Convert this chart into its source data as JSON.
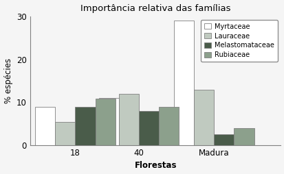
{
  "title": "Importância relativa das famílias",
  "xlabel": "Florestas",
  "ylabel": "% espécies",
  "categories": [
    "18",
    "40",
    "Madura"
  ],
  "series": {
    "Myrtaceae": [
      9.0,
      11.0,
      29.0
    ],
    "Lauraceae": [
      5.5,
      12.0,
      13.0
    ],
    "Melastomataceae": [
      9.0,
      8.0,
      2.5
    ],
    "Rubiaceae": [
      10.8,
      9.0,
      4.0
    ]
  },
  "colors": {
    "Myrtaceae": "#ffffff",
    "Lauraceae": "#c0cac0",
    "Melastomataceae": "#4a5c4a",
    "Rubiaceae": "#8ca08c"
  },
  "edge_color": "#808080",
  "ylim": [
    0,
    30
  ],
  "yticks": [
    0,
    10,
    20,
    30
  ],
  "bar_width": 0.12,
  "legend_fontsize": 7.0,
  "axis_fontsize": 8.5,
  "title_fontsize": 9.5,
  "group_positions": [
    0.22,
    0.6,
    1.05
  ],
  "xlim": [
    -0.05,
    1.45
  ]
}
